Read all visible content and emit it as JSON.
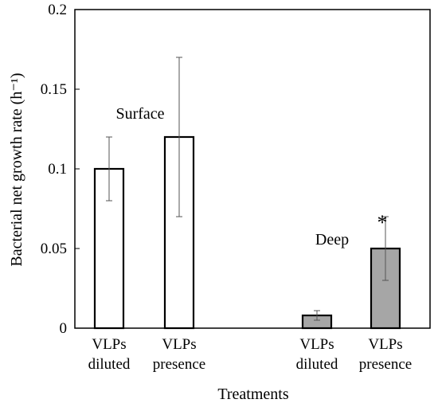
{
  "chart_data": {
    "type": "bar",
    "xlabel": "Treatments",
    "ylabel": "Bacterial net growth rate (h⁻¹)",
    "ylim": [
      0,
      0.2
    ],
    "yticks": [
      {
        "value": 0,
        "label": "0"
      },
      {
        "value": 0.05,
        "label": "0.05"
      },
      {
        "value": 0.1,
        "label": "0.1"
      },
      {
        "value": 0.15,
        "label": "0.15"
      },
      {
        "value": 0.2,
        "label": "0.2"
      }
    ],
    "grid": false,
    "legend": "none",
    "bars": [
      {
        "line1": "VLPs",
        "line2": "diluted",
        "group": "Surface",
        "value": 0.1,
        "err_low": 0.08,
        "err_high": 0.12,
        "fill": "#ffffff",
        "marker": ""
      },
      {
        "line1": "VLPs",
        "line2": "presence",
        "group": "Surface",
        "value": 0.12,
        "err_low": 0.07,
        "err_high": 0.17,
        "fill": "#ffffff",
        "marker": ""
      },
      {
        "line1": "VLPs",
        "line2": "diluted",
        "group": "Deep",
        "value": 0.008,
        "err_low": 0.005,
        "err_high": 0.011,
        "fill": "#a6a6a6",
        "marker": ""
      },
      {
        "line1": "VLPs",
        "line2": "presence",
        "group": "Deep",
        "value": 0.05,
        "err_low": 0.03,
        "err_high": 0.07,
        "fill": "#a6a6a6",
        "marker": "*"
      }
    ],
    "annotations": [
      "Surface",
      "Deep"
    ]
  }
}
